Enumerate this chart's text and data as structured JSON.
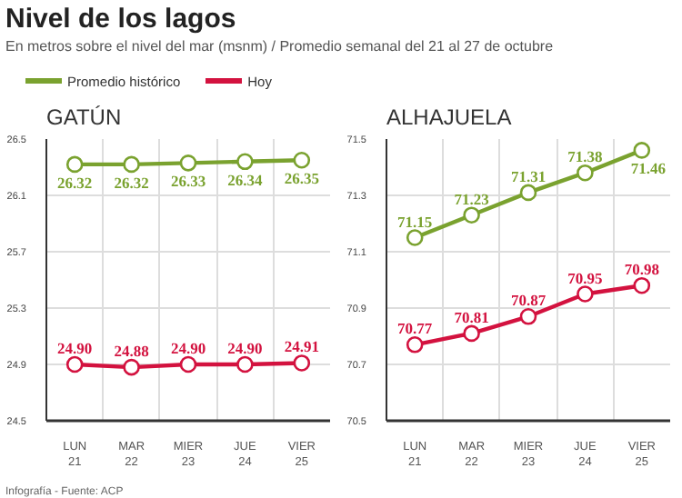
{
  "chart_data": [
    {
      "type": "other",
      "title": "Nivel de los lagos",
      "subtitle": "En metros sobre el nivel del mar (msnm) / Promedio semanal del 21 al 27 de octubre",
      "annotations": [
        "Infografía - Fuente: ACP"
      ]
    },
    {
      "type": "line",
      "title": "GATÚN",
      "categories": [
        "LUN\n21",
        "MAR\n22",
        "MIER\n23",
        "JUE\n24",
        "VIER\n25"
      ],
      "series": [
        {
          "name": "Promedio histórico",
          "color": "#7aa22f",
          "values": [
            26.32,
            26.32,
            26.33,
            26.34,
            26.35
          ],
          "value_labels": [
            "26.32",
            "26.32",
            "26.33",
            "26.34",
            "26.35"
          ]
        },
        {
          "name": "Hoy",
          "color": "#d3123f",
          "values": [
            24.9,
            24.88,
            24.9,
            24.9,
            24.91
          ],
          "value_labels": [
            "24.90",
            "24.88",
            "24.90",
            "24.90",
            "24.91"
          ]
        }
      ],
      "ylim": [
        24.5,
        26.5
      ],
      "yticks": [
        24.5,
        24.9,
        25.3,
        25.7,
        26.1,
        26.5
      ],
      "grid": true,
      "legend": "top",
      "marker": "circle"
    },
    {
      "type": "line",
      "title": "ALHAJUELA",
      "categories": [
        "LUN\n21",
        "MAR\n22",
        "MIER\n23",
        "JUE\n24",
        "VIER\n25"
      ],
      "series": [
        {
          "color": "#7aa22f",
          "values": [
            71.15,
            71.23,
            71.31,
            71.38,
            71.46
          ],
          "value_labels": [
            "71.15",
            "71.23",
            "71.31",
            "71.38",
            "71.46"
          ]
        },
        {
          "color": "#d3123f",
          "values": [
            70.77,
            70.81,
            70.87,
            70.95,
            70.98
          ],
          "value_labels": [
            "70.77",
            "70.81",
            "70.87",
            "70.95",
            "70.98"
          ]
        }
      ],
      "ylim": [
        70.5,
        71.5
      ],
      "yticks": [
        70.5,
        70.7,
        70.9,
        71.1,
        71.3,
        71.5
      ],
      "grid": true,
      "marker": "circle"
    }
  ]
}
